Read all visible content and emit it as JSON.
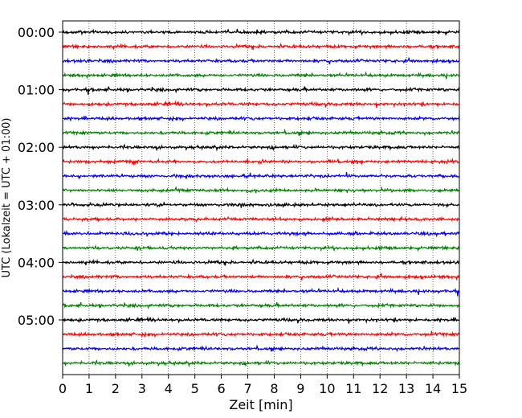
{
  "chart_data": {
    "type": "line",
    "title": "",
    "xlabel": "Zeit  [min]",
    "ylabel": "UTC (Lokalzeit = UTC + 01:00)",
    "xlim": [
      0,
      15
    ],
    "x_ticks": [
      "0",
      "1",
      "2",
      "3",
      "4",
      "5",
      "6",
      "7",
      "8",
      "9",
      "10",
      "11",
      "12",
      "13",
      "14",
      "15"
    ],
    "y_tick_labels": [
      "00:00",
      "01:00",
      "02:00",
      "03:00",
      "04:00",
      "05:00"
    ],
    "grid": "vertical dotted lines at each minute",
    "traces_per_hour": 4,
    "minutes_per_trace": 15,
    "trace_start_times": [
      "00:00",
      "00:15",
      "00:30",
      "00:45",
      "01:00",
      "01:15",
      "01:30",
      "01:45",
      "02:00",
      "02:15",
      "02:30",
      "02:45",
      "03:00",
      "03:15",
      "03:30",
      "03:45",
      "04:00",
      "04:15",
      "04:30",
      "04:45",
      "05:00",
      "05:15",
      "05:30",
      "05:45"
    ],
    "trace_colors": [
      "#000000",
      "#ff0000",
      "#0000ff",
      "#008000"
    ]
  }
}
